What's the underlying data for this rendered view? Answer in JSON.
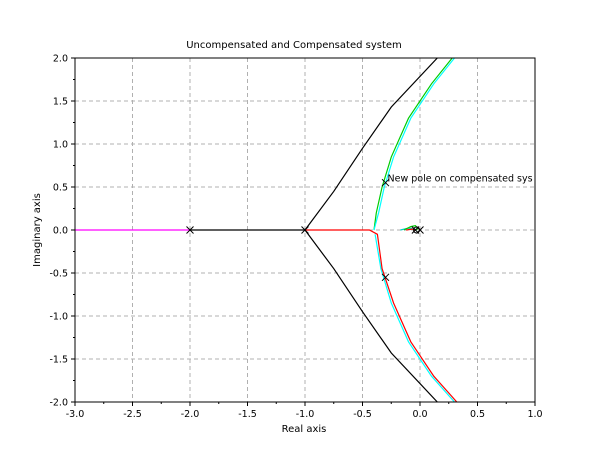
{
  "chart_data": {
    "type": "line",
    "title": "Uncompensated and Compensated system",
    "xlabel": "Real axis",
    "ylabel": "Imaginary axis",
    "xlim": [
      -3.0,
      1.0
    ],
    "ylim": [
      -2.0,
      2.0
    ],
    "x_ticks": [
      -3.0,
      -2.5,
      -2.0,
      -1.5,
      -1.0,
      -0.5,
      0.0,
      0.5,
      1.0
    ],
    "x_tick_labels": [
      "-3.0",
      "-2.5",
      "-2.0",
      "-1.5",
      "-1.0",
      "-0.5",
      "0.0",
      "0.5",
      "1.0"
    ],
    "y_ticks": [
      2.0,
      1.5,
      1.0,
      0.5,
      0.0,
      -0.5,
      -1.0,
      -1.5,
      -2.0
    ],
    "y_tick_labels": [
      "2.0",
      "1.5",
      "1.0",
      "0.5",
      "0.0",
      "-0.5",
      "-1.0",
      "-1.5",
      "-2.0"
    ],
    "grid": true,
    "annotation": {
      "text": "New pole on compensated sys",
      "x": -0.3,
      "y": 0.6
    },
    "series": [
      {
        "color": "#ff00ff",
        "values": [
          [
            -3.0,
            0.0
          ],
          [
            -2.0,
            0.0
          ]
        ]
      },
      {
        "color": "#000000",
        "values": [
          [
            -2.0,
            0.0
          ],
          [
            -1.0,
            0.0
          ]
        ]
      },
      {
        "color": "#000000",
        "values": [
          [
            -1.0,
            0.0
          ],
          [
            -0.75,
            0.45
          ],
          [
            -0.5,
            0.95
          ],
          [
            -0.25,
            1.43
          ],
          [
            0.15,
            2.0
          ]
        ]
      },
      {
        "color": "#000000",
        "values": [
          [
            -1.0,
            0.0
          ],
          [
            -0.75,
            -0.45
          ],
          [
            -0.5,
            -0.95
          ],
          [
            -0.25,
            -1.43
          ],
          [
            0.15,
            -2.0
          ]
        ]
      },
      {
        "color": "#00cc00",
        "values": [
          [
            -0.4,
            0.0
          ],
          [
            -0.38,
            0.2
          ],
          [
            -0.33,
            0.5
          ],
          [
            -0.25,
            0.85
          ],
          [
            -0.1,
            1.3
          ],
          [
            0.1,
            1.7
          ],
          [
            0.28,
            2.0
          ]
        ]
      },
      {
        "color": "#00ffff",
        "values": [
          [
            -0.4,
            0.0
          ],
          [
            -0.36,
            0.2
          ],
          [
            -0.31,
            0.5
          ],
          [
            -0.23,
            0.85
          ],
          [
            -0.08,
            1.3
          ],
          [
            0.12,
            1.7
          ],
          [
            0.3,
            2.0
          ]
        ]
      },
      {
        "color": "#00ffff",
        "values": [
          [
            -0.39,
            -0.05
          ],
          [
            -0.34,
            -0.45
          ],
          [
            -0.25,
            -0.85
          ],
          [
            -0.1,
            -1.3
          ],
          [
            0.1,
            -1.7
          ],
          [
            0.3,
            -2.0
          ]
        ]
      },
      {
        "color": "#ff0000",
        "values": [
          [
            -1.0,
            0.0
          ],
          [
            -0.44,
            0.0
          ],
          [
            -0.37,
            -0.05
          ],
          [
            -0.33,
            -0.45
          ],
          [
            -0.23,
            -0.85
          ],
          [
            -0.08,
            -1.3
          ],
          [
            0.12,
            -1.7
          ],
          [
            0.32,
            -2.0
          ]
        ]
      },
      {
        "color": "#00cccc",
        "values": [
          [
            -0.17,
            0.0
          ],
          [
            -0.11,
            0.02
          ],
          [
            -0.06,
            0.02
          ],
          [
            -0.03,
            0.0
          ]
        ]
      },
      {
        "color": "#00cc00",
        "values": [
          [
            -0.14,
            0.0
          ],
          [
            -0.08,
            0.04
          ],
          [
            -0.04,
            0.05
          ],
          [
            -0.02,
            0.02
          ],
          [
            -0.03,
            0.0
          ]
        ]
      },
      {
        "color": "#ff0000",
        "values": [
          [
            -0.12,
            0.0
          ],
          [
            -0.07,
            0.01
          ],
          [
            -0.04,
            0.0
          ]
        ]
      }
    ],
    "poles": [
      [
        -2.0,
        0.0
      ],
      [
        -1.0,
        0.0
      ],
      [
        0.0,
        0.0
      ],
      [
        -0.04,
        0.0
      ],
      [
        -0.3,
        0.55
      ],
      [
        -0.3,
        -0.55
      ]
    ],
    "zeros": [
      [
        -0.03,
        0.0
      ]
    ]
  }
}
